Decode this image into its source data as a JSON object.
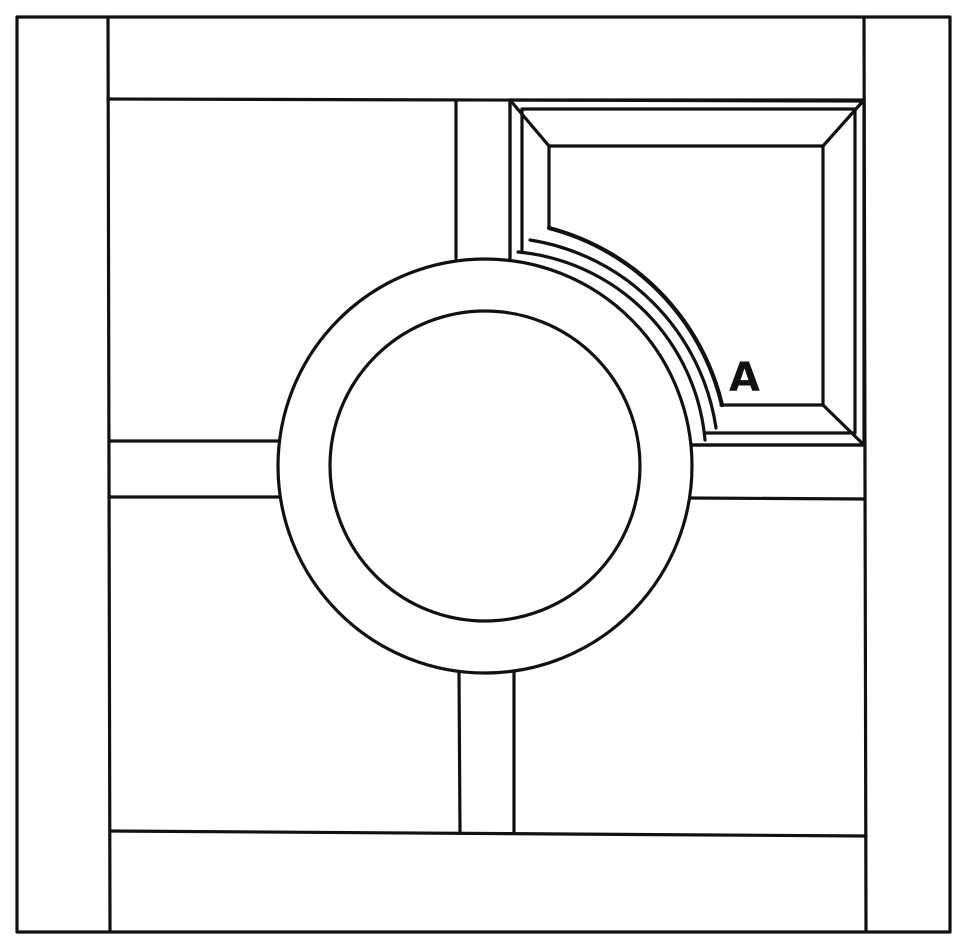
{
  "diagram": {
    "labels": {
      "a": "A"
    }
  }
}
